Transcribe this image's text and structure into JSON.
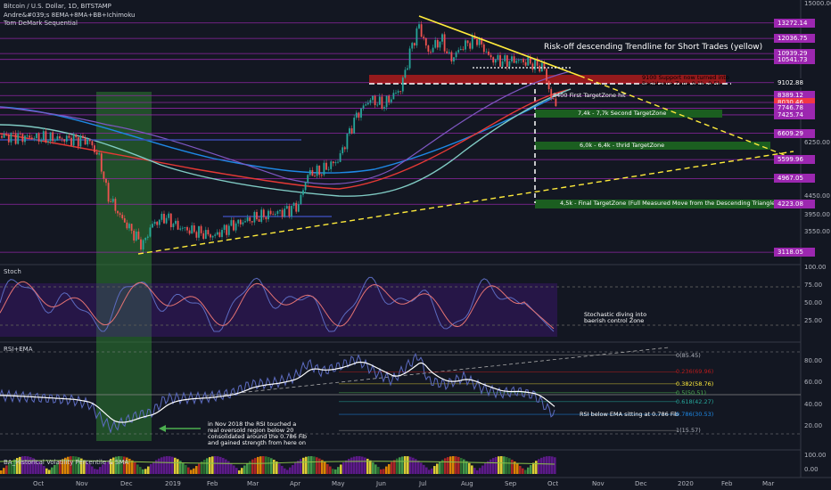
{
  "header": {
    "title": "Bitcoin / U.S. Dollar, 1D, BITSTAMP",
    "study1": "Andre&#039;s 8EMA+8MA+BB+Ichimoku",
    "study2": "Tom DeMark Sequential"
  },
  "annotations": {
    "trendline_title": "Risk-off descending Trendline for Short Trades (yellow)",
    "support_zone": "9100 Support now turned into\nResistance Zone 9,1k -9,5k",
    "target1": "8400 First TargetZone hit",
    "target2": "7,4k - 7,7k Second TargetZone",
    "target3": "6,0k - 6,4k - thrid TargetZone",
    "target4": "4,5k - Final TargetZone (Full Measured Move from the Descending Triangle (Log-Scale))",
    "stoch_note": "Stochastic diving into\nbaerish control Zone",
    "rsi_note": "RSI below EMA sitting at 0.786 Fib",
    "rsi_history": "in Nov 2018 the RSI touched a\nreal oversold region below 20\nconsolidated around the 0.786 Fib\nand gained strength from here on"
  },
  "panels": {
    "stoch": "Stoch",
    "rsi": "RSI+EMA",
    "hv": "BA_Historical Volatility Percentile & SMA"
  },
  "price_axis": {
    "ticks": [
      "15000.00",
      "6250.00",
      "4450.00",
      "3950.00",
      "3550.00"
    ],
    "boxes": [
      {
        "label": "13272.14",
        "color": "#9c27b0"
      },
      {
        "label": "12036.75",
        "color": "#9c27b0"
      },
      {
        "label": "10939.29",
        "color": "#9c27b0"
      },
      {
        "label": "10541.73",
        "color": "#9c27b0"
      },
      {
        "label": "9102.88",
        "color": "#131722"
      },
      {
        "label": "8389.12",
        "color": "#9c27b0"
      },
      {
        "label": "8030.46",
        "color": "#f23645"
      },
      {
        "label": "7746.78",
        "color": "#9c27b0"
      },
      {
        "label": "7425.74",
        "color": "#9c27b0"
      },
      {
        "label": "6609.29",
        "color": "#9c27b0"
      },
      {
        "label": "5599.96",
        "color": "#9c27b0"
      },
      {
        "label": "4967.05",
        "color": "#9c27b0"
      },
      {
        "label": "4223.08",
        "color": "#9c27b0"
      },
      {
        "label": "3118.05",
        "color": "#9c27b0"
      }
    ]
  },
  "stoch_axis": [
    "100.00",
    "75.00",
    "50.00",
    "25.00"
  ],
  "rsi_axis": [
    "80.00",
    "60.00",
    "40.00",
    "20.00"
  ],
  "hv_axis": [
    "100.00",
    "0.00"
  ],
  "fib_labels": [
    "0(85.45)",
    "0.236(69.96)",
    "0.382(58.76)",
    "0.5(50.51)",
    "0.618(42.27)",
    "0.786(30.53)",
    "1(15.57)"
  ],
  "time_axis": [
    "Oct",
    "Nov",
    "Dec",
    "2019",
    "Feb",
    "Mar",
    "Apr",
    "May",
    "Jun",
    "Jul",
    "Aug",
    "Sep",
    "Oct",
    "Nov",
    "Dec",
    "2020",
    "Feb",
    "Mar"
  ],
  "chart_data": {
    "type": "line",
    "title": "Bitcoin / U.S. Dollar, 1D, BITSTAMP",
    "xlabel": "",
    "ylabel": "",
    "ylim": [
      3118,
      15000
    ],
    "scale": "log",
    "x": [
      "2018-10",
      "2018-11",
      "2018-12",
      "2019-01",
      "2019-02",
      "2019-03",
      "2019-04",
      "2019-05",
      "2019-06",
      "2019-07",
      "2019-08",
      "2019-09",
      "2019-10"
    ],
    "series": [
      {
        "name": "",
        "values": [
          6500,
          6300,
          3800,
          3700,
          3500,
          3900,
          5200,
          8000,
          11000,
          10500,
          10000,
          10200,
          8000
        ]
      }
    ],
    "levels": [
      13272.14,
      12036.75,
      10939.29,
      10541.73,
      9102.88,
      8389.12,
      8030.46,
      7746.78,
      7425.74,
      6609.29,
      5599.96,
      4967.05,
      4223.08,
      3118.05
    ],
    "grid": false
  }
}
